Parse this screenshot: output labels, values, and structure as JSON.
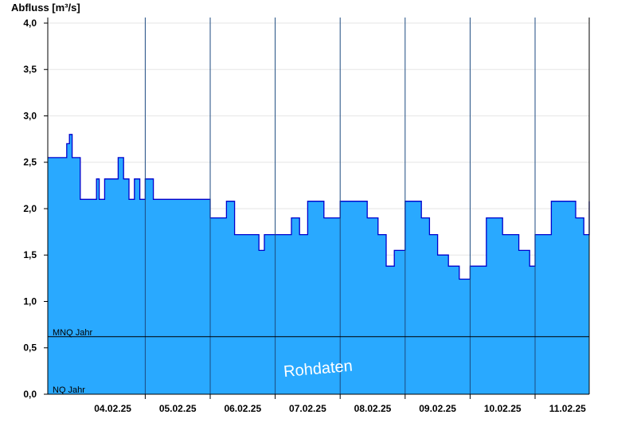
{
  "chart_data": {
    "type": "area",
    "ylabel": "Abfluss [m³/s]",
    "ylim": [
      0,
      4.06
    ],
    "y_ticks": [
      "0,0",
      "0,5",
      "1,0",
      "1,5",
      "2,0",
      "2,5",
      "3,0",
      "3,5",
      "4,0"
    ],
    "y_tick_values": [
      0,
      0.5,
      1.0,
      1.5,
      2.0,
      2.5,
      3.0,
      3.5,
      4.0
    ],
    "x_unit": "days",
    "xlim": [
      "03.02.25 12:00",
      "11.02.25 20:00"
    ],
    "x_ticks": [
      "04.02.25",
      "05.02.25",
      "06.02.25",
      "07.02.25",
      "08.02.25",
      "09.02.25",
      "10.02.25",
      "11.02.25"
    ],
    "grid": true,
    "series": [
      {
        "x": [
          "03.02.25 12:00",
          "03.02.25 18:00",
          "03.02.25 19:00",
          "03.02.25 20:00",
          "03.02.25 21:00",
          "04.02.25 00:00",
          "04.02.25 06:00",
          "04.02.25 07:00",
          "04.02.25 09:00",
          "04.02.25 12:00",
          "04.02.25 14:00",
          "04.02.25 16:00",
          "04.02.25 18:00",
          "04.02.25 20:00",
          "04.02.25 22:00",
          "05.02.25 00:00",
          "05.02.25 03:00",
          "05.02.25 06:00",
          "05.02.25 09:00",
          "05.02.25 12:00",
          "05.02.25 18:00",
          "06.02.25 00:00",
          "06.02.25 06:00",
          "06.02.25 09:00",
          "06.02.25 12:00",
          "06.02.25 18:00",
          "06.02.25 20:00",
          "07.02.25 00:00",
          "07.02.25 06:00",
          "07.02.25 09:00",
          "07.02.25 12:00",
          "07.02.25 18:00",
          "08.02.25 00:00",
          "08.02.25 06:00",
          "08.02.25 10:00",
          "08.02.25 14:00",
          "08.02.25 17:00",
          "08.02.25 20:00",
          "09.02.25 00:00",
          "09.02.25 06:00",
          "09.02.25 09:00",
          "09.02.25 12:00",
          "09.02.25 16:00",
          "09.02.25 20:00",
          "10.02.25 00:00",
          "10.02.25 06:00",
          "10.02.25 12:00",
          "10.02.25 18:00",
          "10.02.25 22:00",
          "11.02.25 00:00",
          "11.02.25 06:00",
          "11.02.25 12:00",
          "11.02.25 15:00",
          "11.02.25 18:00",
          "11.02.25 20:00"
        ],
        "values": [
          2.55,
          2.55,
          2.7,
          2.8,
          2.55,
          2.1,
          2.32,
          2.1,
          2.32,
          2.32,
          2.55,
          2.32,
          2.1,
          2.32,
          2.1,
          2.32,
          2.1,
          2.1,
          2.1,
          2.1,
          2.1,
          1.9,
          2.08,
          1.72,
          1.72,
          1.55,
          1.72,
          1.72,
          1.9,
          1.72,
          2.08,
          1.9,
          2.08,
          2.08,
          1.9,
          1.72,
          1.38,
          1.55,
          2.08,
          1.9,
          1.72,
          1.5,
          1.38,
          1.24,
          1.38,
          1.9,
          1.72,
          1.55,
          1.38,
          1.72,
          2.08,
          2.08,
          1.9,
          1.72,
          2.08
        ]
      }
    ],
    "reference_lines": [
      {
        "name": "MNQ Jahr",
        "value": 0.62
      },
      {
        "name": "NQ Jahr",
        "value": 0.0
      }
    ],
    "watermark": "Rohdaten",
    "colors": {
      "area_fill": "#29a9ff",
      "series_line": "#0000cc",
      "gridline": "#e6e6e6",
      "day_separator": "#1c4a80",
      "reference_line": "#000000",
      "axis": "#000000"
    }
  }
}
